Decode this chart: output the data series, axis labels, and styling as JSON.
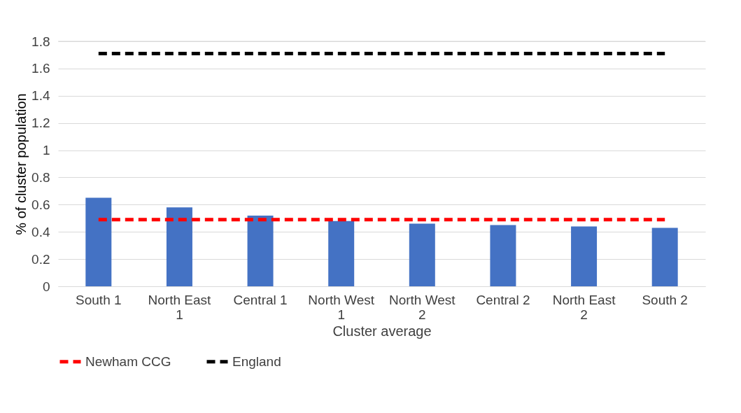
{
  "chart_data": {
    "type": "bar",
    "xlabel": "Cluster average",
    "ylabel": "% of cluster population",
    "categories": [
      "South 1",
      "North East 1",
      "Central 1",
      "North West 1",
      "North West 2",
      "Central 2",
      "North East 2",
      "South 2"
    ],
    "series": [
      {
        "color": "#4472c4",
        "values": [
          0.65,
          0.58,
          0.52,
          0.48,
          0.46,
          0.45,
          0.44,
          0.43
        ]
      },
      {
        "type": "line",
        "name": "Newham CCG",
        "color": "#ff0000",
        "line_style": "dashed",
        "values": [
          0.49,
          0.49,
          0.49,
          0.49,
          0.49,
          0.49,
          0.49,
          0.49
        ]
      },
      {
        "type": "line",
        "name": "England",
        "color": "#000000",
        "line_style": "dashed",
        "values": [
          1.71,
          1.71,
          1.71,
          1.71,
          1.71,
          1.71,
          1.71,
          1.71
        ]
      }
    ],
    "ylim": [
      0,
      1.8
    ],
    "yticks": [
      0,
      0.2,
      0.4,
      0.6,
      0.8,
      1,
      1.2,
      1.4,
      1.6,
      1.8
    ],
    "grid": "y",
    "legend": "bottom",
    "marker": "none"
  }
}
